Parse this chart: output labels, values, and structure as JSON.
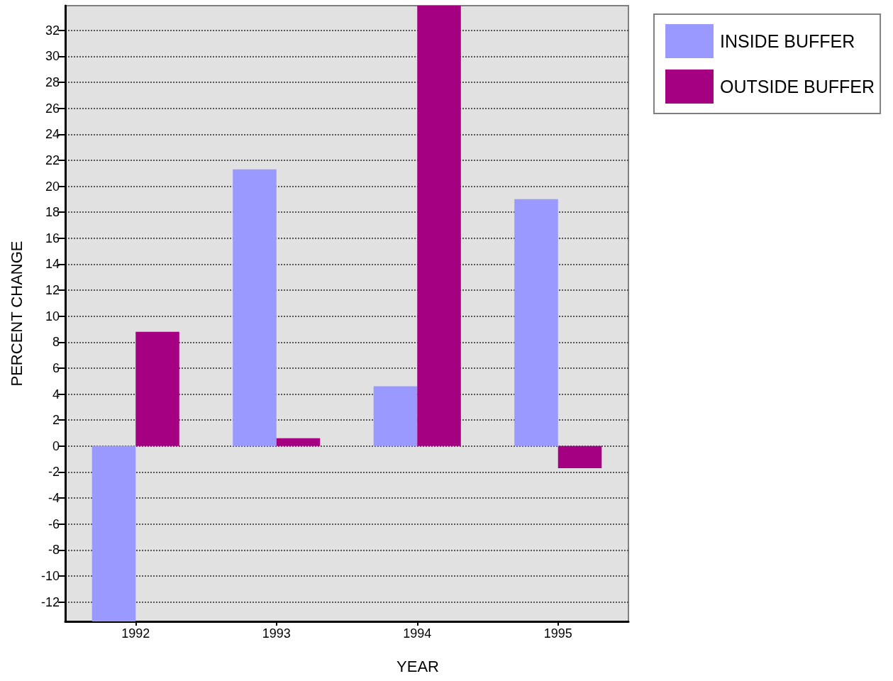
{
  "chart_data": {
    "type": "bar",
    "xlabel": "YEAR",
    "ylabel": "PERCENT CHANGE",
    "categories": [
      "1992",
      "1993",
      "1994",
      "1995"
    ],
    "series": [
      {
        "name": "INSIDE BUFFER",
        "color": "#9999ff",
        "values": [
          -13.5,
          21.3,
          4.6,
          19.0
        ]
      },
      {
        "name": "OUTSIDE BUFFER",
        "color": "#a50082",
        "values": [
          8.8,
          0.6,
          33.9,
          -1.7
        ]
      }
    ],
    "ylim": [
      -13.5,
      33.9
    ],
    "yticks": [
      -12,
      -10,
      -8,
      -6,
      -4,
      -2,
      0,
      2,
      4,
      6,
      8,
      10,
      12,
      14,
      16,
      18,
      20,
      22,
      24,
      26,
      28,
      30,
      32
    ],
    "grid": "y",
    "legend": "top right"
  }
}
